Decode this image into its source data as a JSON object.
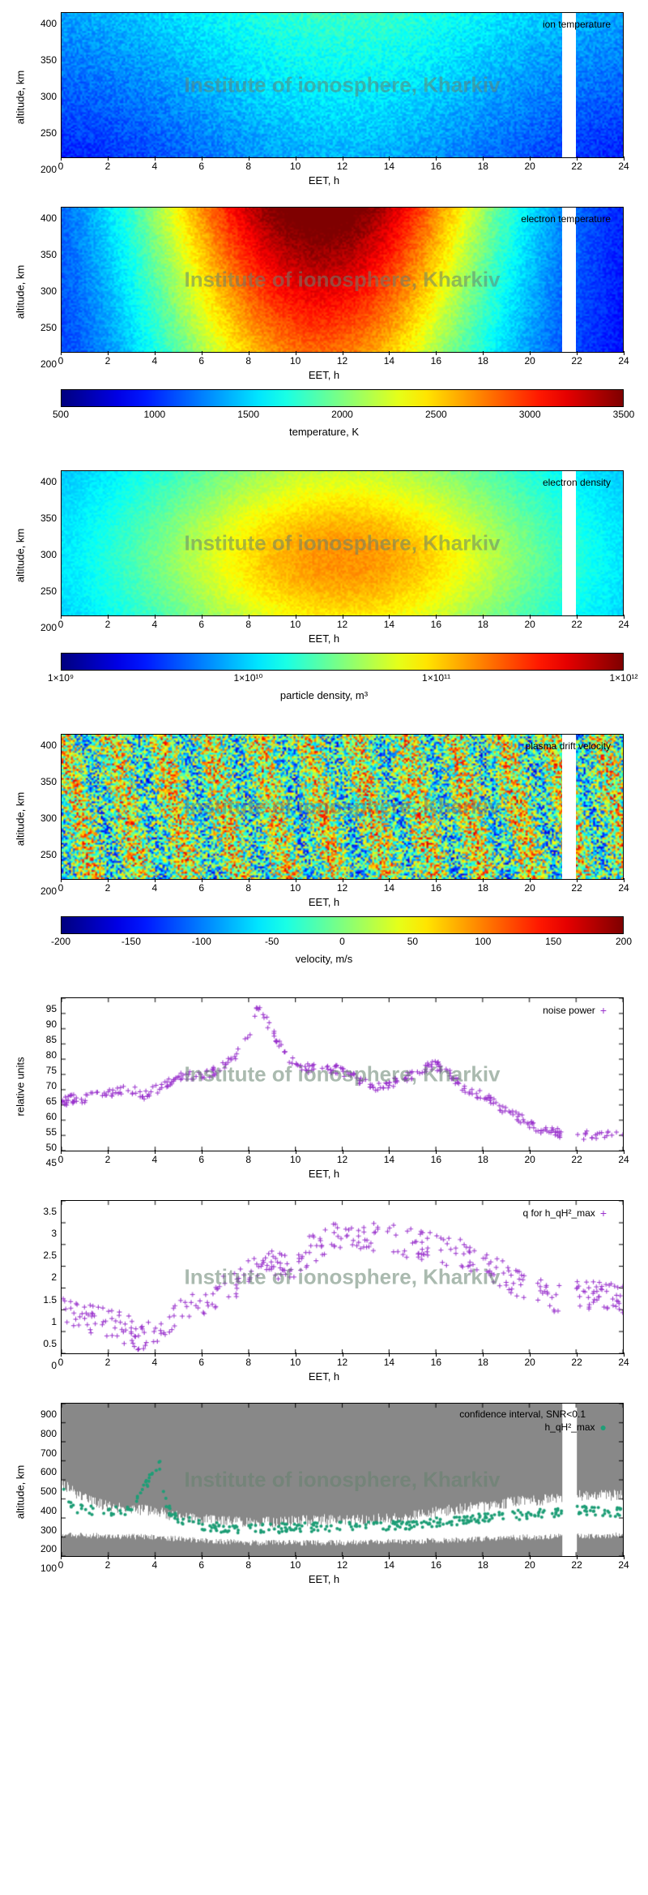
{
  "watermark": "Institute of ionosphere, Kharkiv",
  "watermark_color": "rgba(100,130,110,0.55)",
  "x_common": {
    "label": "EET, h",
    "min": 0,
    "max": 24,
    "ticks": [
      0,
      2,
      4,
      6,
      8,
      10,
      12,
      14,
      16,
      18,
      20,
      22,
      24
    ]
  },
  "altitude_axis": {
    "label": "altitude, km",
    "min": 200,
    "max": 400,
    "ticks": [
      200,
      250,
      300,
      350,
      400
    ]
  },
  "data_gap": {
    "start_h": 21.4,
    "end_h": 22.0
  },
  "jet_colormap": [
    "#00007f",
    "#0000ff",
    "#007fff",
    "#00ffff",
    "#7fff7f",
    "#ffff00",
    "#ff7f00",
    "#ff0000",
    "#7f0000"
  ],
  "temperature_colorbar": {
    "label": "temperature, K",
    "min": 500,
    "max": 3500,
    "ticks": [
      500,
      1000,
      1500,
      2000,
      2500,
      3000,
      3500
    ],
    "palette": "jet"
  },
  "density_colorbar": {
    "label": "particle density, m³",
    "min_exp": 9,
    "max_exp": 12,
    "ticks": [
      "1×10⁹",
      "1×10¹⁰",
      "1×10¹¹",
      "1×10¹²"
    ],
    "tick_positions": [
      0,
      0.333,
      0.667,
      1
    ],
    "palette": "jet"
  },
  "velocity_colorbar": {
    "label": "velocity, m/s",
    "min": -200,
    "max": 200,
    "ticks": [
      -200,
      -150,
      -100,
      -50,
      0,
      50,
      100,
      150,
      200
    ],
    "palette": "jet"
  },
  "panels": {
    "ion_temp": {
      "subtitle": "ion temperature",
      "heatmap_model": {
        "base": 900,
        "day_peak": 1400,
        "day_center": 12,
        "day_sigma": 6,
        "alt_grad": 2.0,
        "noise": 250
      }
    },
    "electron_temp": {
      "subtitle": "electron temperature",
      "heatmap_model": {
        "base": 900,
        "day_peak": 2800,
        "day_center": 11,
        "day_sigma": 5.5,
        "alt_grad": 4.5,
        "noise": 200,
        "night_low": 800
      }
    },
    "electron_density": {
      "subtitle": "electron density",
      "heatmap_model": {
        "base_exp": 9.8,
        "day_peak_exp": 11.2,
        "day_center": 12,
        "day_sigma": 6.5,
        "alt_peak": 280,
        "alt_sigma": 80,
        "noise_exp": 0.15
      }
    },
    "drift_velocity": {
      "subtitle": "plasma drift velocity",
      "heatmap_model": {
        "mean": 0,
        "amp": 50,
        "noise": 120
      }
    }
  },
  "noise_power": {
    "y_label": "relative units",
    "x_label": "EET, h",
    "legend": "noise power",
    "marker_color": "#9932cc",
    "marker": "+",
    "ylim": [
      45,
      95
    ],
    "yticks": [
      45,
      50,
      55,
      60,
      65,
      70,
      75,
      80,
      85,
      90,
      95
    ],
    "series": [
      [
        0,
        61
      ],
      [
        0.5,
        62
      ],
      [
        1,
        62
      ],
      [
        1.5,
        63
      ],
      [
        2,
        64
      ],
      [
        2.5,
        65
      ],
      [
        3,
        65
      ],
      [
        3.5,
        63
      ],
      [
        4,
        65
      ],
      [
        4.5,
        67
      ],
      [
        5,
        69
      ],
      [
        5.5,
        70
      ],
      [
        6,
        69
      ],
      [
        6.5,
        71
      ],
      [
        7,
        73
      ],
      [
        7.5,
        77
      ],
      [
        8,
        83
      ],
      [
        8.2,
        88
      ],
      [
        8.4,
        92
      ],
      [
        8.6,
        90
      ],
      [
        9,
        84
      ],
      [
        9.5,
        77
      ],
      [
        10,
        73
      ],
      [
        10.5,
        72
      ],
      [
        11,
        72
      ],
      [
        11.5,
        72
      ],
      [
        12,
        71
      ],
      [
        12.5,
        69
      ],
      [
        13,
        67
      ],
      [
        13.5,
        66
      ],
      [
        14,
        67
      ],
      [
        14.5,
        68
      ],
      [
        15,
        70
      ],
      [
        15.5,
        72
      ],
      [
        16,
        73
      ],
      [
        16.5,
        71
      ],
      [
        17,
        67
      ],
      [
        17.5,
        64
      ],
      [
        18,
        63
      ],
      [
        18.5,
        61
      ],
      [
        19,
        58
      ],
      [
        19.5,
        56
      ],
      [
        20,
        54
      ],
      [
        20.5,
        52
      ],
      [
        21,
        51
      ],
      [
        22.2,
        50
      ],
      [
        22.5,
        50
      ],
      [
        23,
        50
      ],
      [
        23.5,
        50
      ],
      [
        24,
        50
      ]
    ],
    "scatter_noise": 1.5,
    "n_per_point": 8
  },
  "q_factor": {
    "x_label": "EET, h",
    "legend": "q for h_qH²_max",
    "marker_color": "#9932cc",
    "marker": "+",
    "ylim": [
      0,
      3.5
    ],
    "yticks": [
      0,
      0.5,
      1,
      1.5,
      2,
      2.5,
      3,
      3.5
    ],
    "series": [
      [
        0,
        1.0
      ],
      [
        1,
        0.8
      ],
      [
        2,
        0.7
      ],
      [
        3,
        0.5
      ],
      [
        3.5,
        0.3
      ],
      [
        4,
        0.5
      ],
      [
        5,
        0.9
      ],
      [
        6,
        1.2
      ],
      [
        7,
        1.5
      ],
      [
        8,
        1.8
      ],
      [
        9,
        2.0
      ],
      [
        10,
        2.1
      ],
      [
        11,
        2.5
      ],
      [
        12,
        2.7
      ],
      [
        13,
        2.6
      ],
      [
        14,
        2.7
      ],
      [
        15,
        2.5
      ],
      [
        16,
        2.4
      ],
      [
        17,
        2.3
      ],
      [
        18,
        2.0
      ],
      [
        19,
        1.8
      ],
      [
        20,
        1.5
      ],
      [
        21,
        1.3
      ],
      [
        22.2,
        1.4
      ],
      [
        23,
        1.3
      ],
      [
        24,
        1.2
      ]
    ],
    "scatter_noise": 0.35,
    "n_per_point": 15
  },
  "confidence": {
    "y_label": "altitude, km",
    "x_label": "EET, h",
    "legend_ci": "confidence interval, SNR<0.1",
    "legend_h": "h_qH²_max",
    "ci_color": "#888888",
    "marker_color": "#1f9e77",
    "ylim": [
      100,
      900
    ],
    "yticks": [
      100,
      200,
      300,
      400,
      500,
      600,
      700,
      800,
      900
    ],
    "ci_upper": [
      [
        0,
        900
      ],
      [
        2,
        900
      ],
      [
        4,
        900
      ],
      [
        6,
        900
      ],
      [
        8,
        900
      ],
      [
        10,
        900
      ],
      [
        12,
        900
      ],
      [
        14,
        900
      ],
      [
        16,
        900
      ],
      [
        18,
        900
      ],
      [
        20,
        900
      ],
      [
        21.3,
        900
      ],
      [
        22.1,
        900
      ],
      [
        24,
        900
      ]
    ],
    "ci_lower": [
      [
        0,
        480
      ],
      [
        1,
        400
      ],
      [
        2,
        360
      ],
      [
        3,
        350
      ],
      [
        4,
        330
      ],
      [
        5,
        310
      ],
      [
        6,
        290
      ],
      [
        7,
        280
      ],
      [
        8,
        280
      ],
      [
        9,
        280
      ],
      [
        10,
        285
      ],
      [
        11,
        290
      ],
      [
        12,
        290
      ],
      [
        13,
        290
      ],
      [
        14,
        300
      ],
      [
        15,
        310
      ],
      [
        16,
        330
      ],
      [
        17,
        350
      ],
      [
        18,
        360
      ],
      [
        19,
        380
      ],
      [
        20,
        390
      ],
      [
        21,
        400
      ],
      [
        22.2,
        420
      ],
      [
        23,
        420
      ],
      [
        24,
        420
      ]
    ],
    "ci_lowband_top": [
      [
        0,
        210
      ],
      [
        2,
        205
      ],
      [
        4,
        200
      ],
      [
        6,
        180
      ],
      [
        8,
        170
      ],
      [
        10,
        170
      ],
      [
        12,
        170
      ],
      [
        14,
        175
      ],
      [
        16,
        180
      ],
      [
        18,
        190
      ],
      [
        20,
        200
      ],
      [
        22.2,
        205
      ],
      [
        24,
        210
      ]
    ],
    "ci_lowband_bottom": 100,
    "h_series": [
      [
        0,
        480
      ],
      [
        0.5,
        350
      ],
      [
        1,
        340
      ],
      [
        2,
        330
      ],
      [
        3,
        340
      ],
      [
        3.5,
        450
      ],
      [
        4,
        560
      ],
      [
        4.2,
        580
      ],
      [
        4.5,
        350
      ],
      [
        5,
        300
      ],
      [
        6,
        260
      ],
      [
        7,
        245
      ],
      [
        8,
        245
      ],
      [
        9,
        245
      ],
      [
        10,
        250
      ],
      [
        11,
        250
      ],
      [
        12,
        255
      ],
      [
        13,
        255
      ],
      [
        14,
        260
      ],
      [
        15,
        265
      ],
      [
        16,
        280
      ],
      [
        17,
        290
      ],
      [
        18,
        300
      ],
      [
        19,
        310
      ],
      [
        20,
        320
      ],
      [
        21,
        330
      ],
      [
        22.2,
        340
      ],
      [
        23,
        335
      ],
      [
        24,
        330
      ]
    ],
    "h_noise": 25,
    "n_per_point": 12
  }
}
